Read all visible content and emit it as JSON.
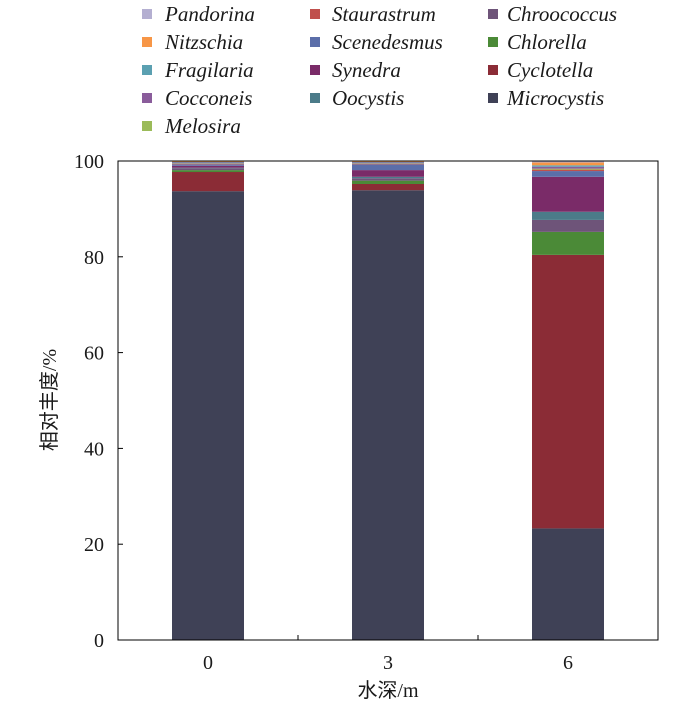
{
  "chart_data": {
    "type": "bar",
    "stacked": true,
    "xlabel": "水深/m",
    "ylabel": "相对丰度/%",
    "categories": [
      "0",
      "3",
      "6"
    ],
    "ylim": [
      0,
      100
    ],
    "yticks": [
      0,
      20,
      40,
      60,
      80,
      100
    ],
    "grid": false,
    "legend_position": "top",
    "series": [
      {
        "name": "Microcystis",
        "color": "#3f4156",
        "values": [
          93.7,
          93.9,
          23.3
        ]
      },
      {
        "name": "Cyclotella",
        "color": "#8b2c36",
        "values": [
          4.0,
          1.3,
          57.1
        ]
      },
      {
        "name": "Chlorella",
        "color": "#4b8a37",
        "values": [
          0.4,
          0.7,
          4.8
        ]
      },
      {
        "name": "Chroococcus",
        "color": "#6e5479",
        "values": [
          0.4,
          0.5,
          2.5
        ]
      },
      {
        "name": "Oocystis",
        "color": "#4b7b89",
        "values": [
          0.1,
          0.3,
          1.7
        ]
      },
      {
        "name": "Synedra",
        "color": "#7a2b68",
        "values": [
          0.4,
          1.4,
          7.3
        ]
      },
      {
        "name": "Scenedesmus",
        "color": "#5b6ea9",
        "values": [
          0.3,
          1.2,
          1.2
        ]
      },
      {
        "name": "Staurastrum",
        "color": "#c0504d",
        "values": [
          0.1,
          0.1,
          0.3
        ]
      },
      {
        "name": "Melosira",
        "color": "#9bbb59",
        "values": [
          0.1,
          0.1,
          0.2
        ]
      },
      {
        "name": "Cocconeis",
        "color": "#8a5c9b",
        "values": [
          0.2,
          0.2,
          0.4
        ]
      },
      {
        "name": "Fragilaria",
        "color": "#5ba0b1",
        "values": [
          0.1,
          0.1,
          0.3
        ]
      },
      {
        "name": "Nitzschia",
        "color": "#f79646",
        "values": [
          0.1,
          0.1,
          0.6
        ]
      },
      {
        "name": "Pandorina",
        "color": "#b4afd1",
        "values": [
          0.1,
          0.1,
          0.3
        ]
      }
    ]
  }
}
